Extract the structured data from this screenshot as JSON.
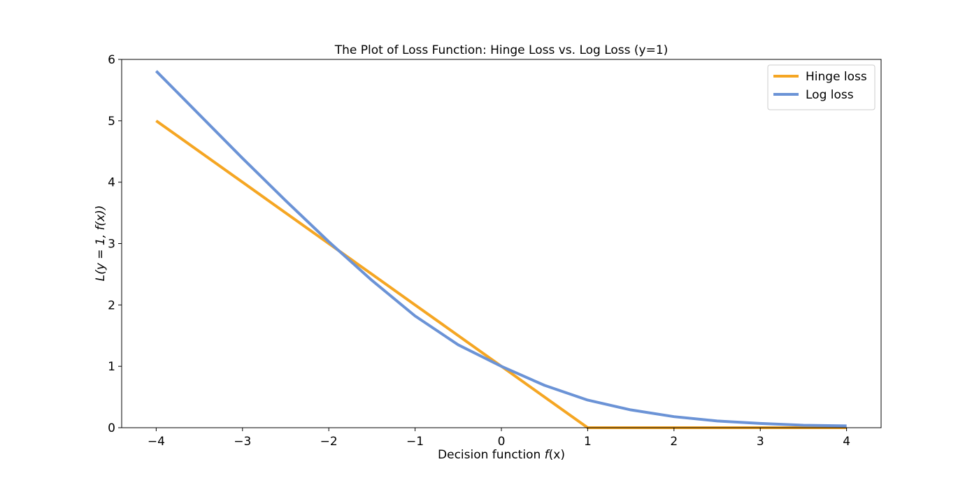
{
  "chart_data": {
    "type": "line",
    "title": "The Plot of Loss Function: Hinge Loss vs. Log Loss (y=1)",
    "xlabel_prefix": "Decision function ",
    "xlabel_math": "f",
    "xlabel_suffix": "(x)",
    "ylabel_math": "L(y = 1, f(x))",
    "xlim": [
      -4.4,
      4.4
    ],
    "ylim": [
      0,
      6
    ],
    "xticks": [
      -4,
      -3,
      -2,
      -1,
      0,
      1,
      2,
      3,
      4
    ],
    "xtick_labels": [
      "−4",
      "−3",
      "−2",
      "−1",
      "0",
      "1",
      "2",
      "3",
      "4"
    ],
    "yticks": [
      0,
      1,
      2,
      3,
      4,
      5,
      6
    ],
    "ytick_labels": [
      "0",
      "1",
      "2",
      "3",
      "4",
      "5",
      "6"
    ],
    "grid": false,
    "legend_position": "top-right",
    "x": [
      -4,
      -3.5,
      -3,
      -2.5,
      -2,
      -1.5,
      -1,
      -0.5,
      0,
      0.5,
      1,
      1.5,
      2,
      2.5,
      3,
      3.5,
      4
    ],
    "series": [
      {
        "name": "Hinge loss",
        "color": "#f5a623",
        "values": [
          5,
          4.5,
          4,
          3.5,
          3,
          2.5,
          2,
          1.5,
          1,
          0.5,
          0,
          0,
          0,
          0,
          0,
          0,
          0
        ]
      },
      {
        "name": "Log loss",
        "color": "#6b93d6",
        "values": [
          5.81,
          5.1,
          4.39,
          3.7,
          3.03,
          2.4,
          1.82,
          1.35,
          1.0,
          0.69,
          0.45,
          0.29,
          0.18,
          0.11,
          0.07,
          0.04,
          0.03
        ]
      }
    ]
  }
}
